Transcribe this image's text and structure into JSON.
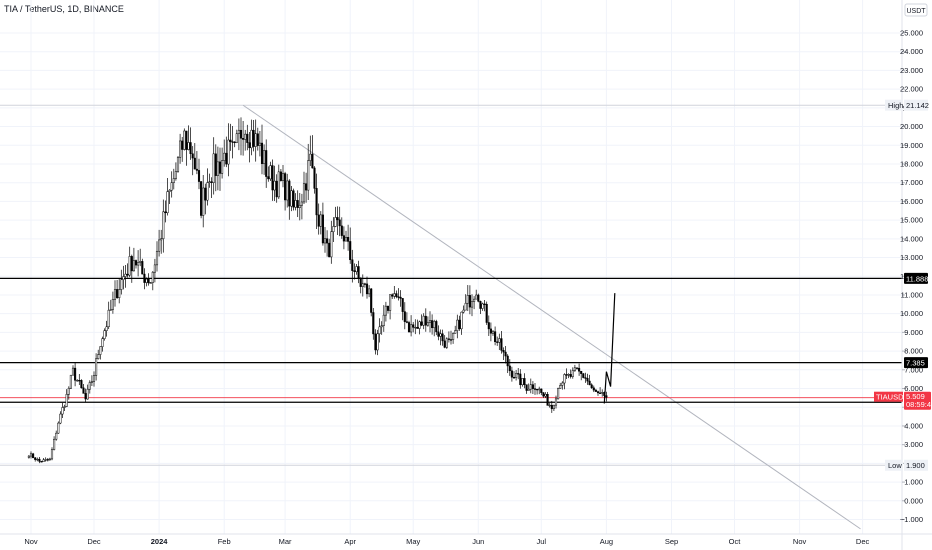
{
  "header": {
    "title": "TIA / TetherUS, 1D, BINANCE"
  },
  "price_axis": {
    "currency_label": "USDT"
  },
  "chart_data": {
    "type": "candlestick",
    "title": "TIA / TetherUS, 1D, BINANCE",
    "ylim": [
      -1.5,
      26.0
    ],
    "y_ticks": [
      "25.000",
      "24.000",
      "23.000",
      "22.000",
      "21.000",
      "20.000",
      "19.000",
      "18.000",
      "17.000",
      "16.000",
      "15.000",
      "14.000",
      "13.000",
      "12.000",
      "11.000",
      "10.000",
      "9.000",
      "8.000",
      "7.000",
      "6.000",
      "5.000",
      "4.000",
      "3.000",
      "2.000",
      "1.000",
      "0.000",
      "−1.000"
    ],
    "x_ticks": [
      {
        "label": "Nov",
        "bold": false
      },
      {
        "label": "Dec",
        "bold": false
      },
      {
        "label": "2024",
        "bold": true
      },
      {
        "label": "Feb",
        "bold": false
      },
      {
        "label": "Mar",
        "bold": false
      },
      {
        "label": "Apr",
        "bold": false
      },
      {
        "label": "May",
        "bold": false
      },
      {
        "label": "Jun",
        "bold": false
      },
      {
        "label": "Jul",
        "bold": false
      },
      {
        "label": "Aug",
        "bold": false
      },
      {
        "label": "Sep",
        "bold": false
      },
      {
        "label": "Oct",
        "bold": false
      },
      {
        "label": "Nov",
        "bold": false
      },
      {
        "label": "Dec",
        "bold": false
      }
    ],
    "price_path": [
      [
        "2023-10-31",
        2.5
      ],
      [
        "2023-11-05",
        2.1
      ],
      [
        "2023-11-10",
        2.2
      ],
      [
        "2023-11-14",
        4.2
      ],
      [
        "2023-11-18",
        5.6
      ],
      [
        "2023-11-21",
        6.9
      ],
      [
        "2023-11-24",
        6.2
      ],
      [
        "2023-11-27",
        5.4
      ],
      [
        "2023-12-01",
        6.8
      ],
      [
        "2023-12-04",
        8.5
      ],
      [
        "2023-12-08",
        9.8
      ],
      [
        "2023-12-12",
        11.3
      ],
      [
        "2023-12-16",
        12.2
      ],
      [
        "2023-12-20",
        13.0
      ],
      [
        "2023-12-24",
        12.1
      ],
      [
        "2023-12-28",
        11.8
      ],
      [
        "2024-01-01",
        13.8
      ],
      [
        "2024-01-05",
        16.0
      ],
      [
        "2024-01-09",
        17.6
      ],
      [
        "2024-01-13",
        19.4
      ],
      [
        "2024-01-17",
        18.6
      ],
      [
        "2024-01-21",
        15.8
      ],
      [
        "2024-01-25",
        17.6
      ],
      [
        "2024-01-29",
        17.9
      ],
      [
        "2024-02-02",
        18.6
      ],
      [
        "2024-02-06",
        18.5
      ],
      [
        "2024-02-10",
        20.2
      ],
      [
        "2024-02-14",
        19.6
      ],
      [
        "2024-02-18",
        18.8
      ],
      [
        "2024-02-22",
        17.4
      ],
      [
        "2024-02-26",
        17.0
      ],
      [
        "2024-03-01",
        16.8
      ],
      [
        "2024-03-05",
        15.6
      ],
      [
        "2024-03-09",
        16.4
      ],
      [
        "2024-03-13",
        18.2
      ],
      [
        "2024-03-17",
        15.2
      ],
      [
        "2024-03-21",
        13.3
      ],
      [
        "2024-03-25",
        14.5
      ],
      [
        "2024-03-29",
        14.2
      ],
      [
        "2024-04-02",
        12.6
      ],
      [
        "2024-04-06",
        11.6
      ],
      [
        "2024-04-10",
        11.1
      ],
      [
        "2024-04-13",
        8.2
      ],
      [
        "2024-04-17",
        9.6
      ],
      [
        "2024-04-21",
        11.3
      ],
      [
        "2024-04-25",
        10.4
      ],
      [
        "2024-04-29",
        9.3
      ],
      [
        "2024-05-03",
        9.2
      ],
      [
        "2024-05-07",
        9.8
      ],
      [
        "2024-05-11",
        9.4
      ],
      [
        "2024-05-15",
        8.6
      ],
      [
        "2024-05-19",
        8.3
      ],
      [
        "2024-05-23",
        9.6
      ],
      [
        "2024-05-27",
        10.6
      ],
      [
        "2024-05-31",
        11.4
      ],
      [
        "2024-06-04",
        10.1
      ],
      [
        "2024-06-08",
        8.9
      ],
      [
        "2024-06-12",
        8.1
      ],
      [
        "2024-06-16",
        7.0
      ],
      [
        "2024-06-20",
        6.5
      ],
      [
        "2024-06-24",
        6.1
      ],
      [
        "2024-06-28",
        6.2
      ],
      [
        "2024-07-02",
        5.6
      ],
      [
        "2024-07-06",
        5.0
      ],
      [
        "2024-07-10",
        6.4
      ],
      [
        "2024-07-14",
        6.6
      ],
      [
        "2024-07-18",
        6.9
      ],
      [
        "2024-07-22",
        6.6
      ],
      [
        "2024-07-26",
        5.8
      ],
      [
        "2024-07-30",
        5.6
      ],
      [
        "2024-08-01",
        5.3
      ]
    ],
    "projection_path": [
      [
        "2024-07-31",
        5.2
      ],
      [
        "2024-08-01",
        6.9
      ],
      [
        "2024-08-03",
        6.1
      ],
      [
        "2024-08-05",
        11.1
      ]
    ],
    "trendline": {
      "from": [
        "2024-02-10",
        21.14
      ],
      "to": [
        "2024-11-30",
        -1.5
      ]
    },
    "horizontal_lines": [
      {
        "value": 11.888,
        "label": "11.888"
      },
      {
        "value": 7.385,
        "label": "7.385"
      },
      {
        "value": 5.267,
        "label": "5.267"
      }
    ],
    "markers": {
      "high": {
        "label": "High",
        "value": 21.142,
        "value_label": "21.142"
      },
      "low": {
        "label": "Low",
        "value": 1.9,
        "value_label": "1.900"
      }
    },
    "current_price": {
      "symbol": "TIAUSDT",
      "value": 5.509,
      "value_label": "5.509",
      "countdown": "08:59:49"
    },
    "colors": {
      "up": "#ffffff",
      "down": "#000000",
      "level": "#000000",
      "current": "#f23645",
      "trendline": "#b2b5be",
      "grid": "#f0f3fa"
    }
  }
}
